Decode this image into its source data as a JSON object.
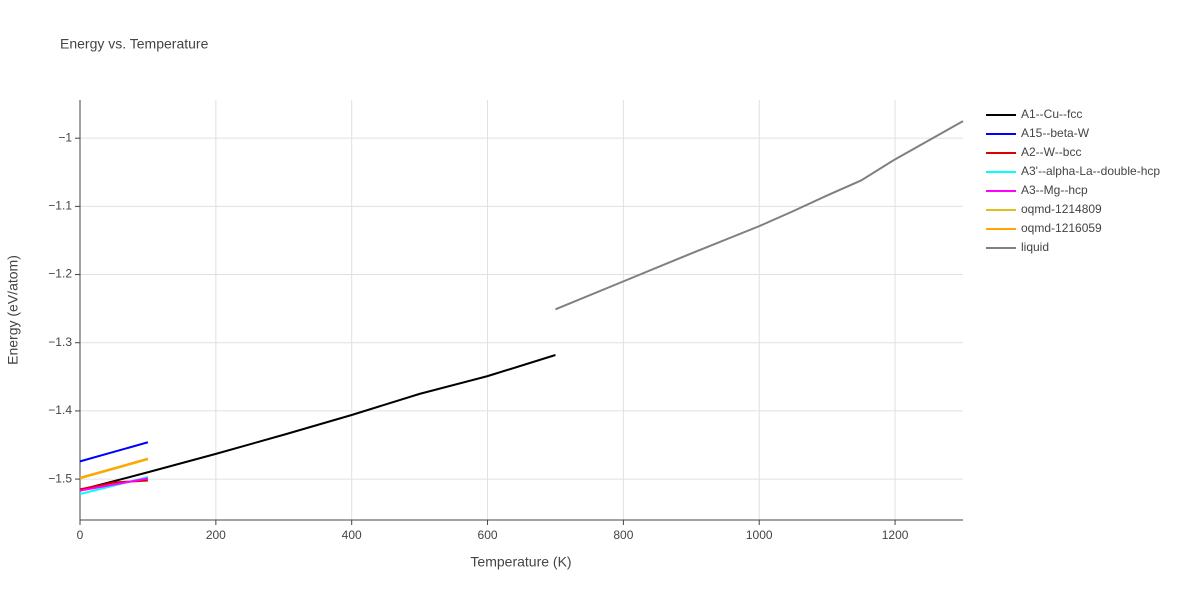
{
  "chart_data": {
    "type": "line",
    "title": "Energy vs. Temperature",
    "x_label": "Temperature (K)",
    "y_label": "Energy (eV/atom)",
    "xlim": [
      0,
      1300
    ],
    "xticks": [
      0,
      200,
      400,
      600,
      800,
      1000,
      1200
    ],
    "ylim": [
      -1.56,
      -0.944
    ],
    "yticks": [
      {
        "value": -1.5,
        "label": "−1.5"
      },
      {
        "value": -1.4,
        "label": "−1.4"
      },
      {
        "value": -1.3,
        "label": "−1.3"
      },
      {
        "value": -1.2,
        "label": "−1.2"
      },
      {
        "value": -1.1,
        "label": "−1.1"
      },
      {
        "value": -1,
        "label": "−1"
      }
    ],
    "grid": true,
    "legend": "right",
    "series": [
      {
        "name": "A1--Cu--fcc",
        "color": "#000000",
        "x": [
          0,
          100,
          200,
          300,
          400,
          500,
          600,
          700
        ],
        "values": [
          -1.516,
          -1.49,
          -1.463,
          -1.435,
          -1.406,
          -1.375,
          -1.349,
          -1.318
        ]
      },
      {
        "name": "A15--beta-W",
        "color": "#0000ff",
        "x": [
          0,
          100
        ],
        "values": [
          -1.474,
          -1.446
        ]
      },
      {
        "name": "A2--W--bcc",
        "color": "#dd0000",
        "x": [
          0,
          50,
          100
        ],
        "values": [
          -1.515,
          -1.505,
          -1.502
        ]
      },
      {
        "name": "A3'--alpha-La--double-hcp",
        "color": "#00ffff",
        "x": [
          0,
          100
        ],
        "values": [
          -1.522,
          -1.497
        ]
      },
      {
        "name": "A3--Mg--hcp",
        "color": "#ff00ff",
        "x": [
          0,
          100
        ],
        "values": [
          -1.517,
          -1.499
        ]
      },
      {
        "name": "oqmd-1214809",
        "color": "#e0c020",
        "x": [
          0,
          100
        ],
        "values": [
          -1.499,
          -1.471
        ]
      },
      {
        "name": "oqmd-1216059",
        "color": "#ffa500",
        "x": [
          0,
          100
        ],
        "values": [
          -1.498,
          -1.47
        ]
      },
      {
        "name": "liquid",
        "color": "#808080",
        "x": [
          700,
          800,
          900,
          1000,
          1050,
          1100,
          1150,
          1200,
          1300
        ],
        "values": [
          -1.251,
          -1.21,
          -1.169,
          -1.129,
          -1.107,
          -1.084,
          -1.062,
          -1.031,
          -0.975
        ]
      }
    ]
  }
}
